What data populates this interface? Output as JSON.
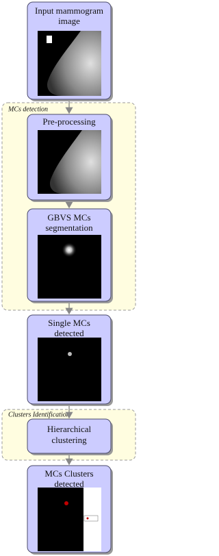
{
  "groups": [
    {
      "label": "MCs detection"
    },
    {
      "label": "Clusters Identification"
    }
  ],
  "nodes": [
    {
      "lines": [
        "Input mammogram",
        "image"
      ]
    },
    {
      "lines": [
        "Pre-processing"
      ]
    },
    {
      "lines": [
        "GBVS MCs",
        "segmentation"
      ]
    },
    {
      "lines": [
        "Single MCs",
        "detected"
      ]
    },
    {
      "lines": [
        "Hierarchical",
        "clustering"
      ]
    },
    {
      "lines": [
        "MCs Clusters",
        "detected"
      ]
    }
  ]
}
